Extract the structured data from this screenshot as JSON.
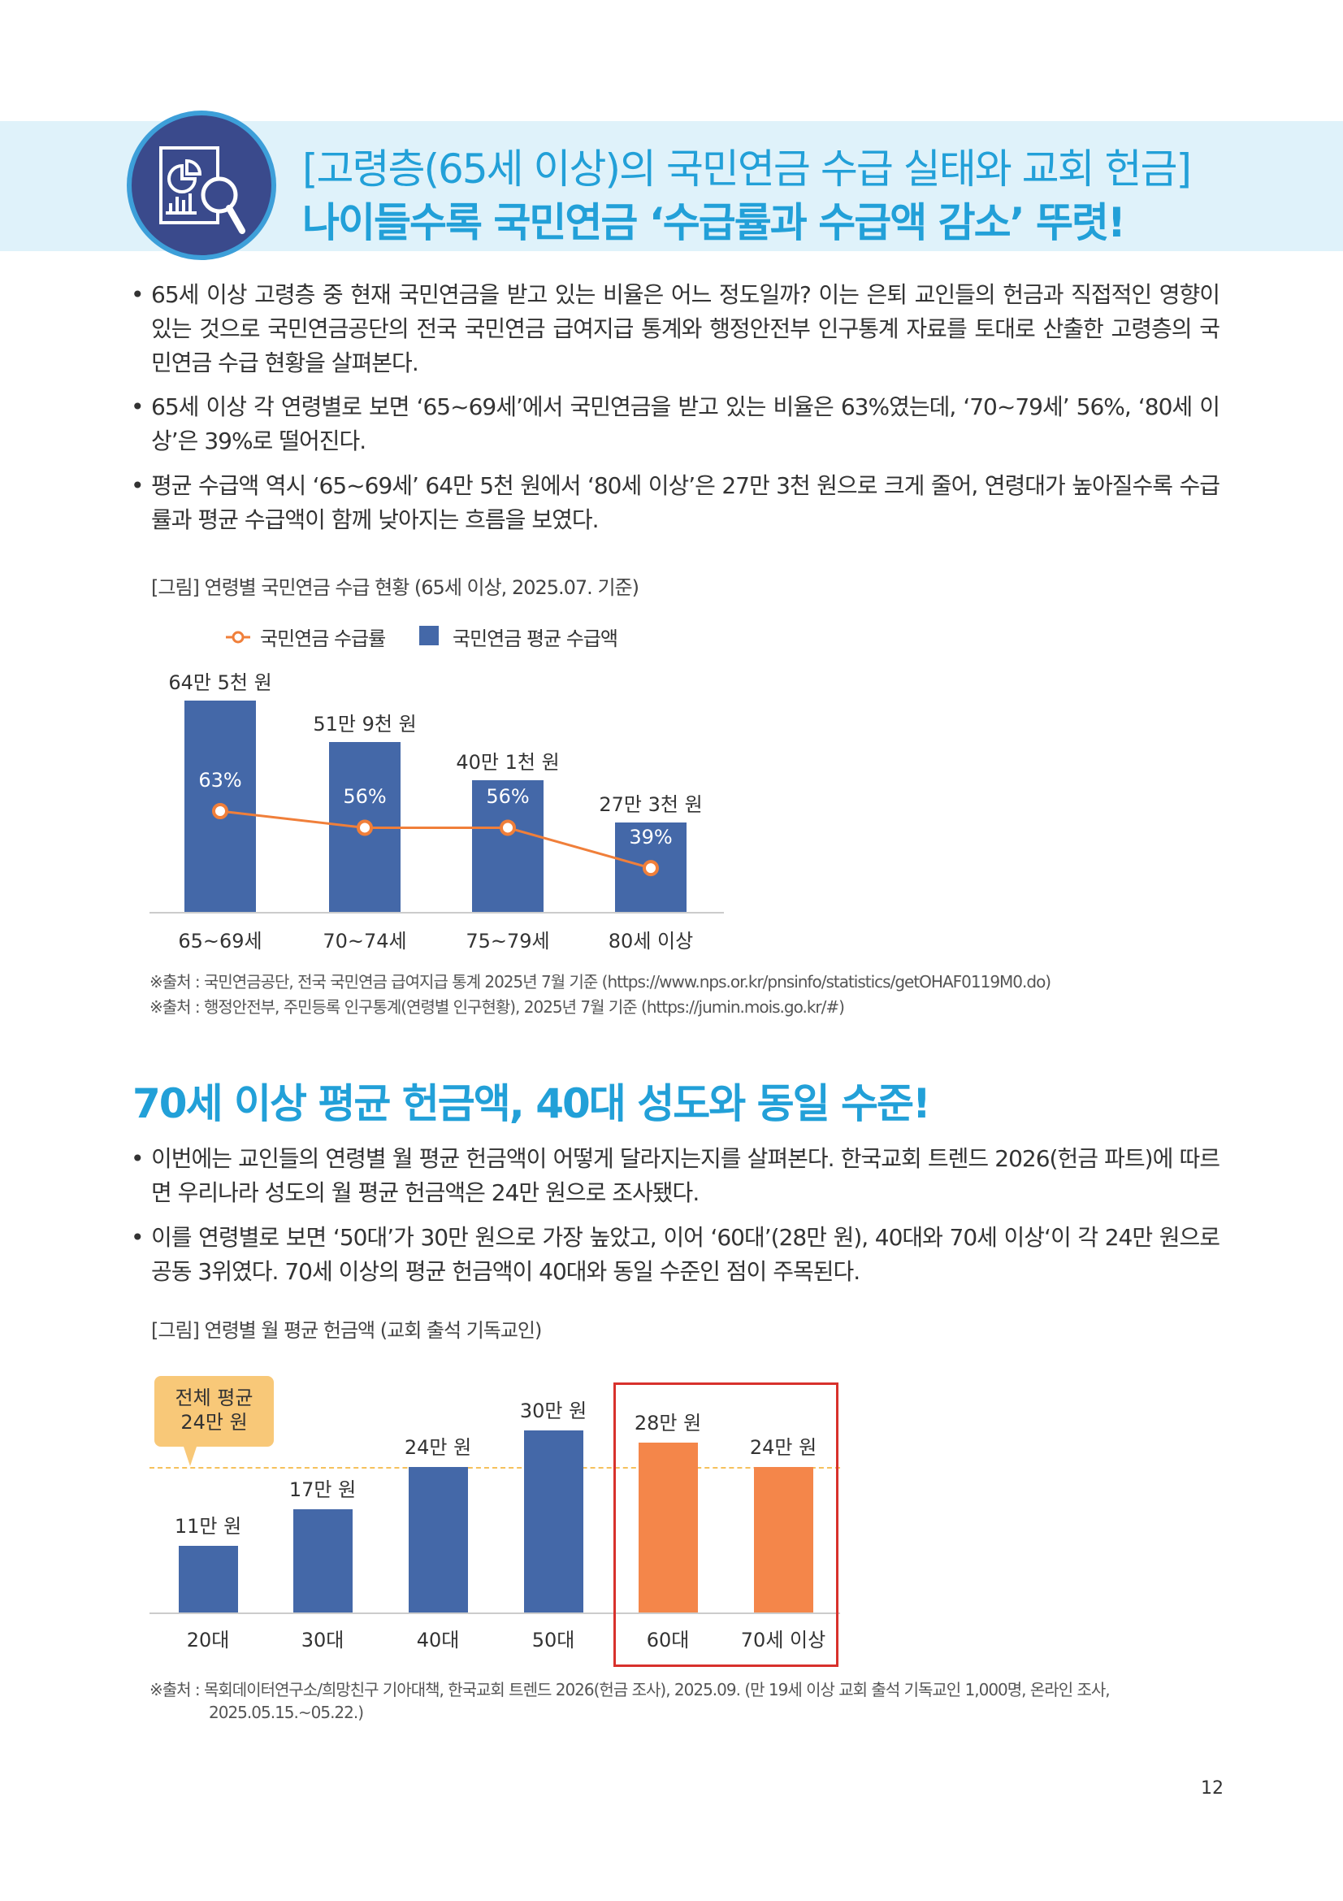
{
  "header": {
    "line1": "[고령층(65세 이상)의 국민연금 수급 실태와 교회 헌금]",
    "line2": "나이들수록 국민연금 ‘수급률과 수급액 감소’ 뚜렷!",
    "icon": "report-magnifier-icon"
  },
  "section1": {
    "bullets": [
      "65세 이상 고령층 중 현재 국민연금을 받고 있는 비율은 어느 정도일까? 이는 은퇴 교인들의 헌금과 직접적인 영향이 있는 것으로 국민연금공단의 전국 국민연금 급여지급 통계와 행정안전부 인구통계 자료를 토대로 산출한 고령층의 국민연금 수급 현황을 살펴본다.",
      "65세 이상 각 연령별로 보면 ‘65~69세’에서 국민연금을 받고 있는 비율은 63%였는데, ‘70~79세’ 56%, ‘80세 이상’은 39%로 떨어진다.",
      "평균 수급액 역시 ‘65~69세’ 64만 5천 원에서 ‘80세 이상’은 27만 3천 원으로 크게 줄어, 연령대가 높아질수록 수급률과 평균 수급액이 함께 낮아지는 흐름을 보였다."
    ],
    "caption": "[그림] 연령별 국민연금 수급 현황 (65세 이상, 2025.07. 기준)",
    "sources": [
      "※출처 : 국민연금공단, 전국 국민연금 급여지급 통계 2025년 7월 기준 (https://www.nps.or.kr/pnsinfo/statistics/getOHAF0119M0.do)",
      "※출처 : 행정안전부, 주민등록 인구통계(연령별 인구현황), 2025년 7월 기준 (https://jumin.mois.go.kr/#)"
    ]
  },
  "section2": {
    "title": "70세 이상 평균 헌금액, 40대 성도와 동일 수준!",
    "bullets": [
      "이번에는 교인들의 연령별 월 평균 헌금액이 어떻게 달라지는지를 살펴본다. 한국교회 트렌드 2026(헌금 파트)에 따르면 우리나라 성도의 월 평균 헌금액은 24만 원으로 조사됐다.",
      "이를 연령별로 보면 ‘50대’가 30만 원으로 가장 높았고, 이어 ‘60대’(28만 원), 40대와 70세 이상‘이 각 24만 원으로 공동 3위였다. 70세 이상의 평균 헌금액이 40대와 동일 수준인 점이 주목된다."
    ],
    "caption": "[그림] 연령별 월 평균 헌금액 (교회 출석 기독교인)",
    "sources": [
      "※출처 : 목회데이터연구소/희망친구 기아대책, 한국교회 트렌드 2026(헌금 조사), 2025.09. (만 19세 이상 교회 출석 기독교인 1,000명, 온라인 조사,",
      "2025.05.15.~05.22.)"
    ]
  },
  "page_number": "12",
  "chart_data": [
    {
      "type": "bar+line",
      "categories": [
        "65~69세",
        "70~74세",
        "75~79세",
        "80세 이상"
      ],
      "series": [
        {
          "name": "국민연금 수급률",
          "type": "line",
          "unit": "%",
          "values": [
            63,
            56,
            56,
            39
          ],
          "labels": [
            "63%",
            "56%",
            "56%",
            "39%"
          ],
          "color": "#f07f3a"
        },
        {
          "name": "국민연금 평균 수급액",
          "type": "bar",
          "unit": "만 원",
          "values": [
            64.5,
            51.9,
            40.1,
            27.3
          ],
          "labels": [
            "64만 5천 원",
            "51만 9천 원",
            "40만 1천 원",
            "27만 3천 원"
          ],
          "color": "#4468a8"
        }
      ],
      "legend": "top-left"
    },
    {
      "type": "bar",
      "categories": [
        "20대",
        "30대",
        "40대",
        "50대",
        "60대",
        "70세 이상"
      ],
      "values": [
        11,
        17,
        24,
        30,
        28,
        24
      ],
      "unit": "만 원",
      "labels": [
        "11만 원",
        "17만 원",
        "24만 원",
        "30만 원",
        "28만 원",
        "24만 원"
      ],
      "colors": [
        "#4468a8",
        "#4468a8",
        "#4468a8",
        "#4468a8",
        "#f4864a",
        "#f4864a"
      ],
      "reference_line": {
        "value": 24,
        "label": "전체 평균\n24만 원",
        "label_line1": "전체 평균",
        "label_line2": "24만 원",
        "color": "#f5c15c"
      },
      "highlight": [
        "60대",
        "70세 이상"
      ],
      "highlight_color": "#d8312c"
    }
  ]
}
